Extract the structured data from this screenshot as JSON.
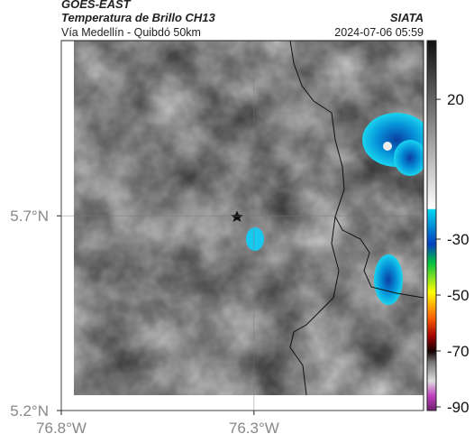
{
  "header": {
    "title": "GOES-EAST",
    "subtitle": "Temperatura de Brillo CH13",
    "location": "Vía Medellín - Quibdó 50km",
    "source": "SIATA",
    "datetime": "2024-07-06 05:59"
  },
  "map": {
    "xlim": [
      -76.8,
      -75.86
    ],
    "ylim": [
      5.2,
      6.15
    ],
    "xticks": [
      {
        "value": -76.8,
        "label": "76.8°W"
      },
      {
        "value": -76.3,
        "label": "76.3°W"
      }
    ],
    "yticks": [
      {
        "value": 5.2,
        "label": "5.2°N"
      },
      {
        "value": 5.7,
        "label": "5.7°N"
      }
    ],
    "grid": true
  },
  "colorbar": {
    "lim": [
      -91.3,
      41
    ],
    "ticks": [
      20,
      -30,
      -50,
      -70,
      -90
    ]
  }
}
